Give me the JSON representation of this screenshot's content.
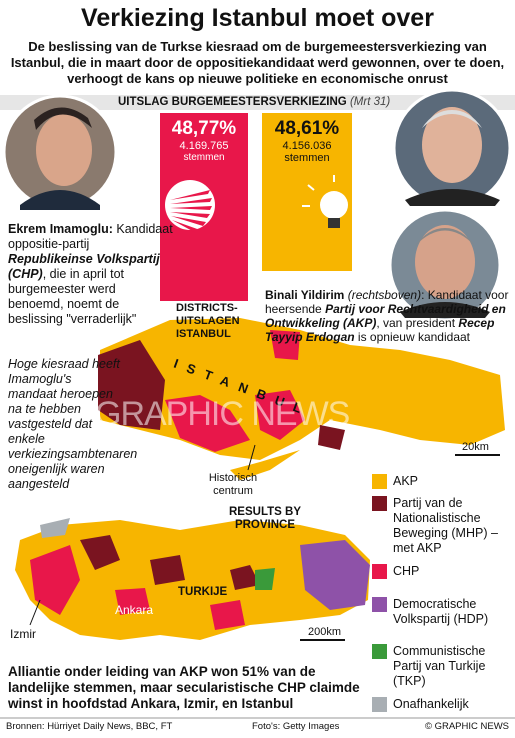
{
  "header": {
    "title": "Verkiezing Istanbul moet over",
    "subtitle": "De beslissing van de Turkse kiesraad om de burgemeestersverkiezing van Istanbul, die in maart door de oppositiekandidaat werd gewonnen, over te doen, verhoogt de kans op nieuwe politieke en economische onrust"
  },
  "result": {
    "heading": "UITSLAG BURGEMEESTERSVERKIEZING",
    "date": "(Mrt 31)",
    "candidates": [
      {
        "percent": "48,77%",
        "votes": "4.169.765",
        "unit": "stemmen"
      },
      {
        "percent": "48,61%",
        "votes": "4.156.036",
        "unit": "stemmen"
      }
    ]
  },
  "imamoglu": {
    "name": "Ekrem Imamoglu:",
    "text1": "Kandidaat oppositie-partij",
    "party": "Republikeinse Volkspartij (CHP)",
    "text2": ", die in april tot burgemeester werd benoemd, noemt de beslissing \"verraderlijk\""
  },
  "yildirim": {
    "name": "Binali Yildirim",
    "note": "(rechtsboven)",
    "text1": ": Kandidaat voor heersende",
    "party": "Partij voor Rechtvaardigheid en Ontwikkeling (AKP)",
    "text2": ", van president",
    "president": "Recep Tayyip Erdogan",
    "text3": "is opnieuw kandidaat"
  },
  "council_note": "Hoge kiesraad heeft Imamoglu's mandaat heroepen na te hebben vastgesteld dat enkele verkiezingsambtenaren oneigenlijk waren aangesteld",
  "istanbul_map": {
    "heading": "DISTRICTS-UITSLAGEN ISTANBUL",
    "label": "ISTANBUL",
    "scale": "20km",
    "center": "Historisch centrum",
    "watermark": "GRAPHIC NEWS"
  },
  "turkey_map": {
    "heading": "RESULTS BY PROVINCE",
    "label": "TURKIJE",
    "cities": [
      "Ankara",
      "Izmir"
    ],
    "scale": "200km"
  },
  "legend": [
    {
      "label": "AKP",
      "color": "#f7b500"
    },
    {
      "label": "Partij van de Nationalistische Beweging (MHP) – met AKP",
      "color": "#7a1420"
    },
    {
      "label": "CHP",
      "color": "#e8174a"
    },
    {
      "label": "Democratische Volkspartij (HDP)",
      "color": "#8e52a8"
    },
    {
      "label": "Communistische Partij van Turkije (TKP)",
      "color": "#3a9a3a"
    },
    {
      "label": "Onafhankelijk",
      "color": "#a8aeb3"
    }
  ],
  "summary": "Alliantie onder leiding van AKP won 51% van de landelijke stemmen, maar secularistische CHP claimde winst in hoofdstad Ankara, Izmir, en Istanbul",
  "footer": {
    "sources": "Bronnen: Hürriyet Daily News, BBC, FT",
    "photos": "Foto's: Getty Images",
    "copyright": "© GRAPHIC NEWS"
  }
}
